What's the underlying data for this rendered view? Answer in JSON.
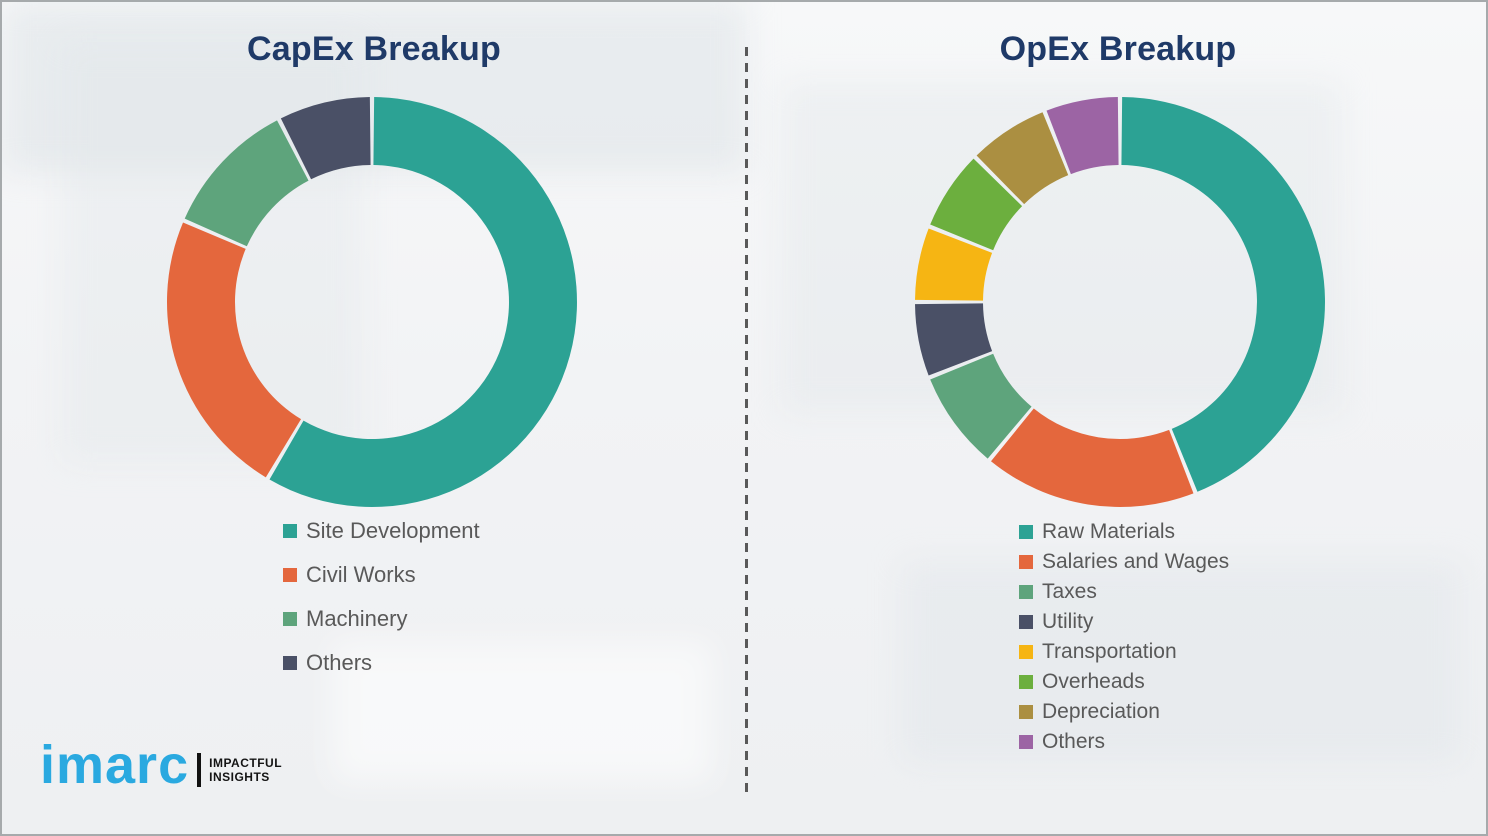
{
  "page": {
    "background_color": "#f2f3f5",
    "border_color": "#a6aaac",
    "divider_color": "#595959",
    "title_color": "#1f3a68",
    "legend_text_color": "#595959"
  },
  "left_panel": {
    "title": "CapEx Breakup"
  },
  "right_panel": {
    "title": "OpEx Breakup"
  },
  "logo": {
    "wordmark": "imarc",
    "tagline_line1": "IMPACTFUL",
    "tagline_line2": "INSIGHTS",
    "wordmark_color": "#2aa9e0",
    "bar_color": "#111111",
    "tagline_color": "#141414"
  },
  "chart_data": [
    {
      "type": "pie",
      "subtype": "donut",
      "title": "CapEx Breakup",
      "legend_position": "below-left",
      "start_angle_deg": 0,
      "direction": "clockwise",
      "values_estimated_from_arcs": true,
      "categories": [
        "Site Development",
        "Civil Works",
        "Machinery",
        "Others"
      ],
      "values": [
        58.5,
        23,
        11,
        7.5
      ],
      "colors": [
        "#2ca294",
        "#e4673d",
        "#5ea47c",
        "#4a5066"
      ]
    },
    {
      "type": "pie",
      "subtype": "donut",
      "title": "OpEx Breakup",
      "legend_position": "below-left",
      "start_angle_deg": 0,
      "direction": "clockwise",
      "values_estimated_from_arcs": true,
      "categories": [
        "Raw Materials",
        "Salaries and Wages",
        "Taxes",
        "Utility",
        "Transportation",
        "Overheads",
        "Depreciation",
        "Others"
      ],
      "values": [
        44,
        17,
        8,
        6,
        6,
        6.5,
        6.5,
        6
      ],
      "colors": [
        "#2ca294",
        "#e4673d",
        "#5ea47c",
        "#4a5066",
        "#f6b513",
        "#6caf3e",
        "#ab8f41",
        "#9c64a4"
      ]
    }
  ]
}
